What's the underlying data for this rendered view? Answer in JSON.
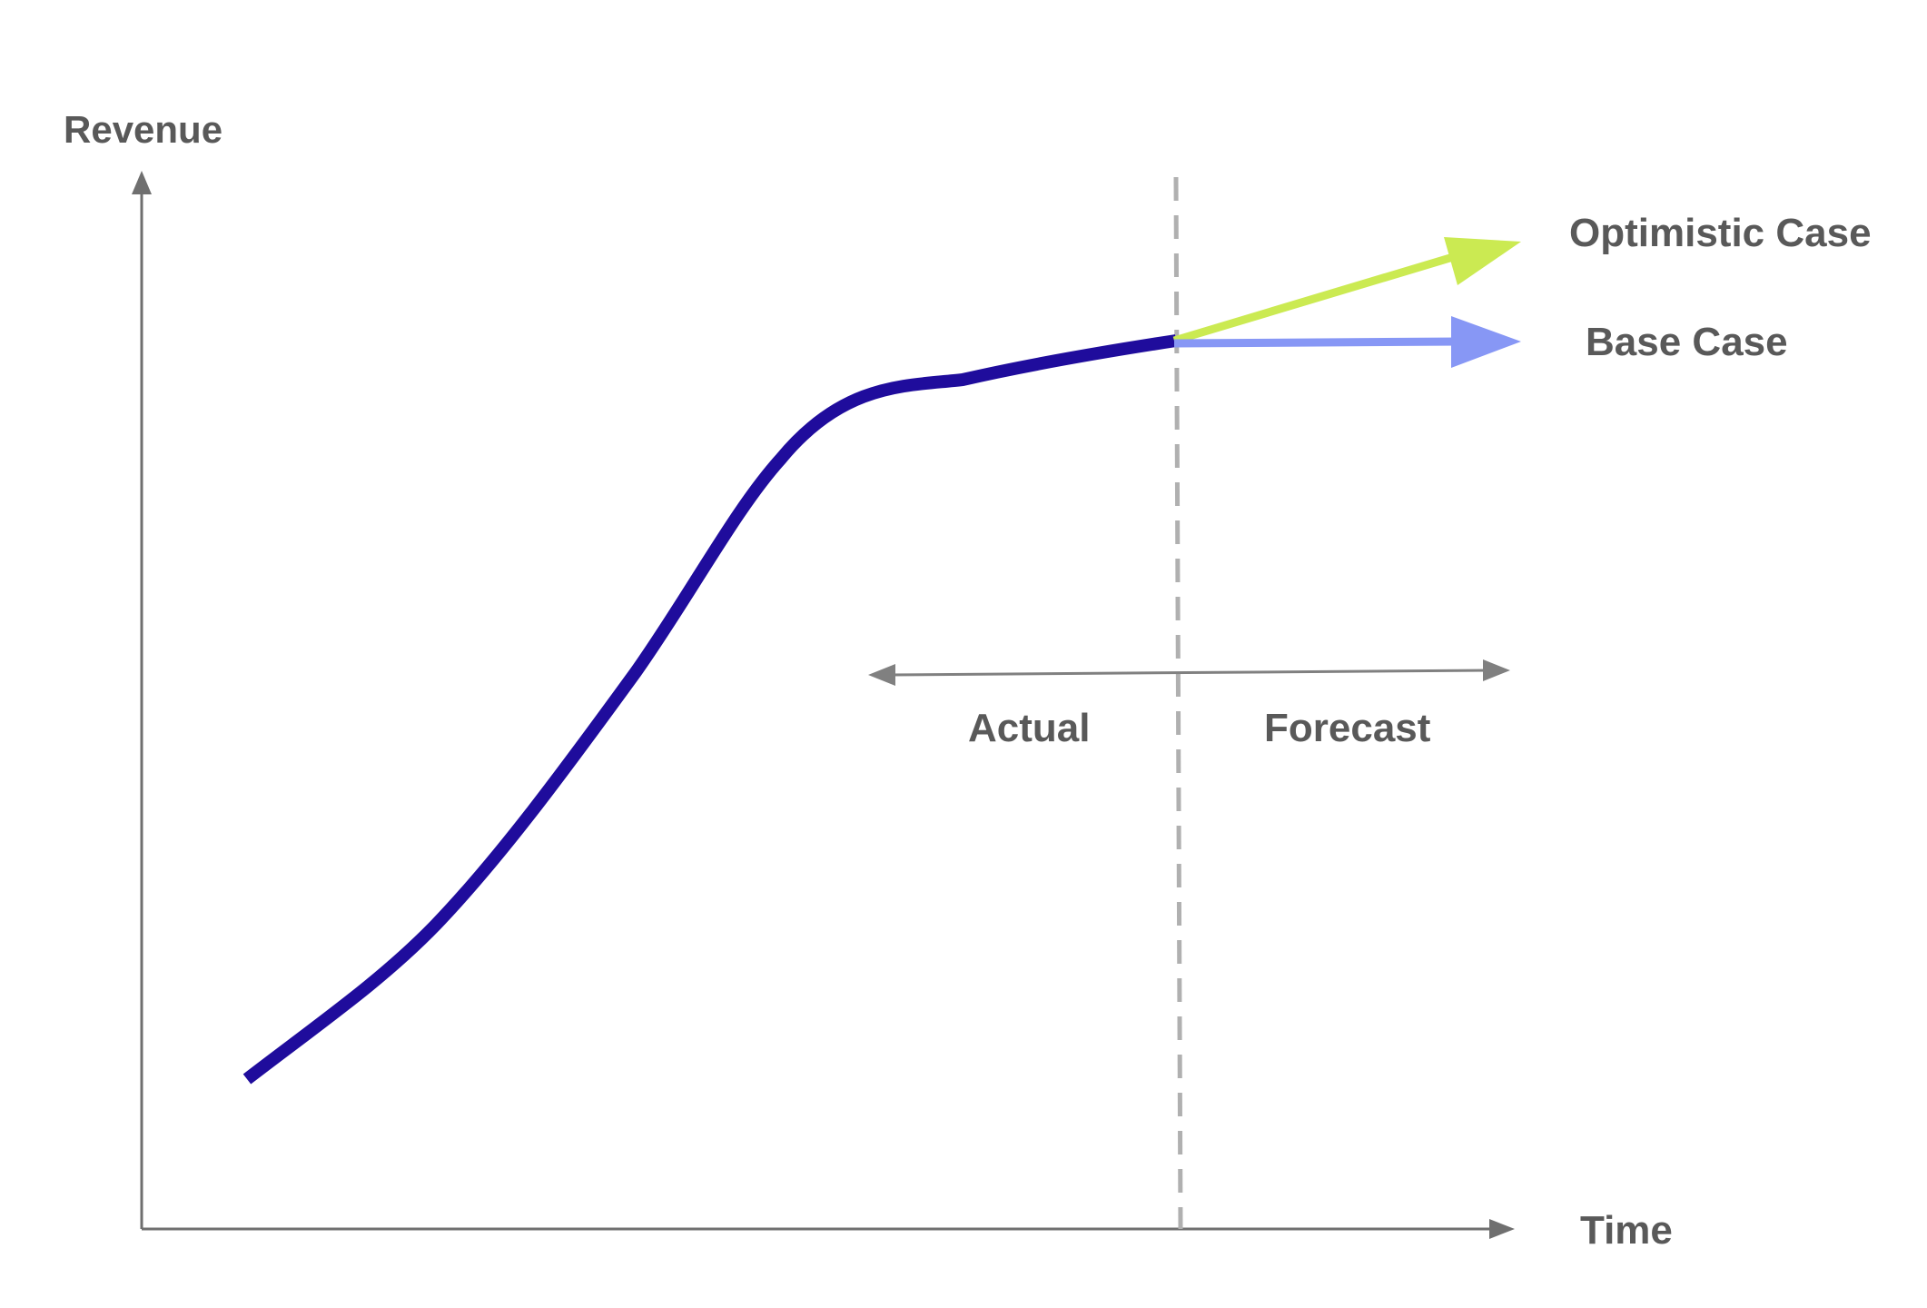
{
  "labels": {
    "y_axis": "Revenue",
    "x_axis": "Time",
    "optimistic": "Optimistic Case",
    "base": "Base Case",
    "actual": "Actual",
    "forecast": "Forecast"
  },
  "colors": {
    "axis": "#6f6f6f",
    "actual_line": "#1f0c9c",
    "optimistic_arrow": "#cbea52",
    "base_arrow": "#8797f5",
    "divider": "#b0b0b0",
    "span_arrow": "#808080",
    "text": "#595959"
  },
  "icons": {
    "optimistic_arrow": "arrow-up-right",
    "base_arrow": "arrow-right",
    "span_arrow": "double-headed-arrow"
  }
}
